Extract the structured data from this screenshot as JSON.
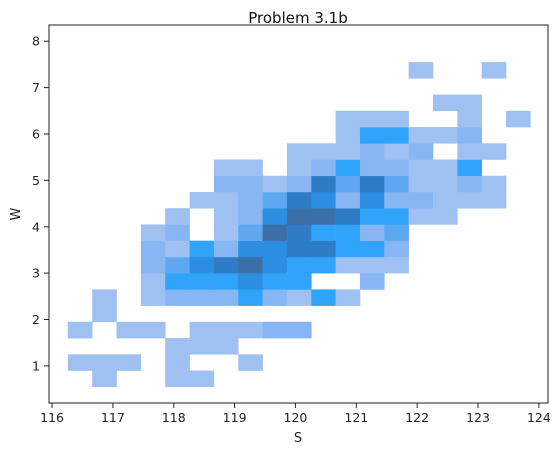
{
  "chart_data": {
    "type": "heatmap",
    "title": "Problem 3.1b",
    "xlabel": "S",
    "ylabel": "W",
    "xlim": [
      115.95,
      124.15
    ],
    "ylim": [
      0.2,
      8.35
    ],
    "xticks": [
      116,
      117,
      118,
      119,
      120,
      121,
      122,
      123,
      124
    ],
    "yticks": [
      1,
      2,
      3,
      4,
      5,
      6,
      7,
      8
    ],
    "grid": false,
    "legend": "none",
    "bin_origin_x": 116.26,
    "bin_width_x": 0.4,
    "bin_origin_y": 0.55,
    "bin_width_y": 0.35,
    "color_levels": [
      "#9fc1f1",
      "#88b5f3",
      "#5ea8f2",
      "#2fa4fa",
      "#2b8ee0",
      "#2f7cc6",
      "#3c6ea8",
      "#3d5474"
    ],
    "cells": [
      [
        116.26,
        1.6,
        1
      ],
      [
        117.06,
        1.6,
        1
      ],
      [
        117.46,
        1.6,
        1
      ],
      [
        118.26,
        1.6,
        1
      ],
      [
        118.66,
        1.6,
        1
      ],
      [
        119.06,
        1.6,
        1
      ],
      [
        119.46,
        1.6,
        2
      ],
      [
        119.86,
        1.6,
        2
      ],
      [
        117.46,
        2.3,
        1
      ],
      [
        117.86,
        2.3,
        2
      ],
      [
        118.26,
        2.3,
        2
      ],
      [
        118.66,
        2.3,
        2
      ],
      [
        119.06,
        2.3,
        4
      ],
      [
        119.46,
        2.3,
        2
      ],
      [
        119.86,
        2.3,
        1
      ],
      [
        120.26,
        2.3,
        4
      ],
      [
        120.66,
        2.3,
        1
      ],
      [
        117.46,
        2.65,
        1
      ],
      [
        117.86,
        2.65,
        4
      ],
      [
        118.26,
        2.65,
        4
      ],
      [
        118.66,
        2.65,
        4
      ],
      [
        119.06,
        2.65,
        5
      ],
      [
        119.46,
        2.65,
        4
      ],
      [
        119.86,
        2.65,
        4
      ],
      [
        121.06,
        2.65,
        2
      ],
      [
        117.46,
        3.0,
        2
      ],
      [
        117.86,
        3.0,
        3
      ],
      [
        118.26,
        3.0,
        5
      ],
      [
        118.66,
        3.0,
        6
      ],
      [
        119.06,
        3.0,
        7
      ],
      [
        119.46,
        3.0,
        5
      ],
      [
        119.86,
        3.0,
        4
      ],
      [
        120.26,
        3.0,
        4
      ],
      [
        120.66,
        3.0,
        1
      ],
      [
        121.06,
        3.0,
        1
      ],
      [
        121.46,
        3.0,
        1
      ],
      [
        117.46,
        3.35,
        2
      ],
      [
        117.86,
        3.35,
        1
      ],
      [
        118.26,
        3.35,
        4
      ],
      [
        118.66,
        3.35,
        2
      ],
      [
        119.06,
        3.35,
        5
      ],
      [
        119.46,
        3.35,
        5
      ],
      [
        119.86,
        3.35,
        6
      ],
      [
        120.26,
        3.35,
        6
      ],
      [
        120.66,
        3.35,
        4
      ],
      [
        121.06,
        3.35,
        4
      ],
      [
        121.46,
        3.35,
        2
      ],
      [
        117.46,
        3.7,
        1
      ],
      [
        117.86,
        3.7,
        2
      ],
      [
        118.66,
        3.7,
        1
      ],
      [
        119.06,
        3.7,
        3
      ],
      [
        119.46,
        3.7,
        7
      ],
      [
        119.86,
        3.7,
        6
      ],
      [
        120.26,
        3.7,
        4
      ],
      [
        120.66,
        3.7,
        4
      ],
      [
        121.06,
        3.7,
        2
      ],
      [
        121.46,
        3.7,
        3
      ],
      [
        117.86,
        4.05,
        1
      ],
      [
        118.66,
        4.05,
        1
      ],
      [
        119.06,
        4.05,
        2
      ],
      [
        119.46,
        4.05,
        5
      ],
      [
        119.86,
        4.05,
        7
      ],
      [
        120.26,
        4.05,
        7
      ],
      [
        120.66,
        4.05,
        6
      ],
      [
        121.06,
        4.05,
        4
      ],
      [
        121.46,
        4.05,
        4
      ],
      [
        121.86,
        4.05,
        1
      ],
      [
        122.26,
        4.05,
        1
      ],
      [
        118.26,
        4.4,
        1
      ],
      [
        118.66,
        4.4,
        1
      ],
      [
        119.06,
        4.4,
        2
      ],
      [
        119.46,
        4.4,
        3
      ],
      [
        119.86,
        4.4,
        6
      ],
      [
        120.26,
        4.4,
        5
      ],
      [
        120.66,
        4.4,
        2
      ],
      [
        121.06,
        4.4,
        5
      ],
      [
        121.46,
        4.4,
        2
      ],
      [
        121.86,
        4.4,
        2
      ],
      [
        122.26,
        4.4,
        1
      ],
      [
        122.66,
        4.4,
        1
      ],
      [
        123.06,
        4.4,
        1
      ],
      [
        118.66,
        4.75,
        2
      ],
      [
        119.06,
        4.75,
        2
      ],
      [
        119.46,
        4.75,
        1
      ],
      [
        119.86,
        4.75,
        2
      ],
      [
        120.26,
        4.75,
        6
      ],
      [
        120.66,
        4.75,
        3
      ],
      [
        121.06,
        4.75,
        6
      ],
      [
        121.46,
        4.75,
        3
      ],
      [
        121.86,
        4.75,
        1
      ],
      [
        122.26,
        4.75,
        1
      ],
      [
        122.66,
        4.75,
        2
      ],
      [
        123.06,
        4.75,
        1
      ],
      [
        118.66,
        5.1,
        1
      ],
      [
        119.06,
        5.1,
        1
      ],
      [
        119.86,
        5.1,
        1
      ],
      [
        120.26,
        5.1,
        2
      ],
      [
        120.66,
        5.1,
        4
      ],
      [
        121.06,
        5.1,
        2
      ],
      [
        121.46,
        5.1,
        2
      ],
      [
        121.86,
        5.1,
        1
      ],
      [
        122.26,
        5.1,
        1
      ],
      [
        122.66,
        5.1,
        4
      ],
      [
        119.86,
        5.45,
        1
      ],
      [
        120.26,
        5.45,
        1
      ],
      [
        120.66,
        5.45,
        1
      ],
      [
        121.06,
        5.45,
        2
      ],
      [
        121.46,
        5.45,
        1
      ],
      [
        121.86,
        5.45,
        2
      ],
      [
        122.66,
        5.45,
        1
      ],
      [
        123.06,
        5.45,
        1
      ],
      [
        120.66,
        5.8,
        1
      ],
      [
        121.06,
        5.8,
        4
      ],
      [
        121.46,
        5.8,
        4
      ],
      [
        121.86,
        5.8,
        1
      ],
      [
        122.26,
        5.8,
        1
      ],
      [
        122.66,
        5.8,
        2
      ],
      [
        120.66,
        6.15,
        1
      ],
      [
        121.06,
        6.15,
        1
      ],
      [
        121.46,
        6.15,
        1
      ],
      [
        122.66,
        6.15,
        1
      ],
      [
        123.46,
        6.15,
        1
      ],
      [
        122.26,
        6.5,
        1
      ],
      [
        122.66,
        6.5,
        1
      ],
      [
        121.86,
        7.2,
        1
      ],
      [
        123.06,
        7.2,
        1
      ],
      [
        116.66,
        1.95,
        1
      ],
      [
        116.66,
        2.3,
        1
      ],
      [
        116.26,
        1.6,
        1
      ],
      [
        116.26,
        0.9,
        1
      ],
      [
        116.66,
        0.9,
        1
      ],
      [
        117.06,
        0.9,
        1
      ],
      [
        116.66,
        0.55,
        1
      ],
      [
        117.86,
        0.55,
        1
      ],
      [
        118.26,
        0.55,
        1
      ],
      [
        117.86,
        0.9,
        1
      ],
      [
        117.86,
        1.25,
        1
      ],
      [
        118.26,
        1.25,
        1
      ],
      [
        118.66,
        1.25,
        1
      ],
      [
        119.06,
        0.9,
        1
      ]
    ]
  }
}
